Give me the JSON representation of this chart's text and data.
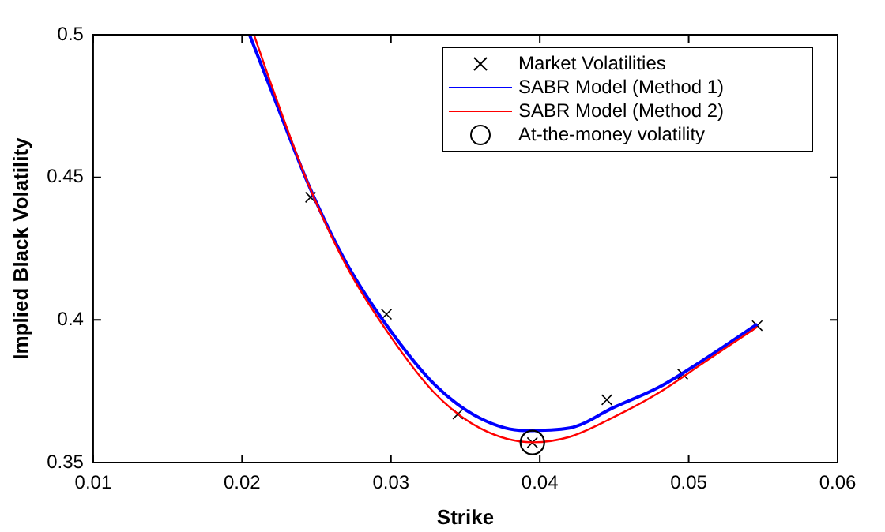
{
  "chart_data": {
    "type": "scatter",
    "xlabel": "Strike",
    "ylabel": "Implied Black Volatility",
    "xlim": [
      0.01,
      0.06
    ],
    "xticks": [
      0.01,
      0.02,
      0.03,
      0.04,
      0.05,
      0.06
    ],
    "ylim": [
      0.35,
      0.5
    ],
    "yticks": [
      0.35,
      0.4,
      0.45,
      0.5
    ],
    "grid": false,
    "legend": "top right",
    "series": [
      {
        "name": "Market Volatilities",
        "type": "scatter",
        "marker": "cross",
        "color": "#000000",
        "x": [
          0.0246,
          0.0297,
          0.0345,
          0.0395,
          0.0445,
          0.0496,
          0.0546
        ],
        "values": [
          0.443,
          0.402,
          0.367,
          0.357,
          0.372,
          0.381,
          0.398
        ]
      },
      {
        "name": "SABR Model (Method 1)",
        "type": "line",
        "marker": "none",
        "color": "#0000ff",
        "x": [
          0.0205,
          0.022,
          0.0245,
          0.027,
          0.03,
          0.033,
          0.036,
          0.039,
          0.042,
          0.045,
          0.048,
          0.051,
          0.0546
        ],
        "values": [
          0.5,
          0.48,
          0.447,
          0.42,
          0.396,
          0.377,
          0.3655,
          0.3612,
          0.3621,
          0.3694,
          0.3764,
          0.386,
          0.3985
        ]
      },
      {
        "name": "SABR Model (Method 2)",
        "type": "line",
        "marker": "none",
        "color": "#ff0000",
        "x": [
          0.0208,
          0.022,
          0.0245,
          0.027,
          0.03,
          0.033,
          0.036,
          0.0395,
          0.042,
          0.045,
          0.048,
          0.051,
          0.0546
        ],
        "values": [
          0.5,
          0.482,
          0.447,
          0.419,
          0.394,
          0.374,
          0.362,
          0.3571,
          0.359,
          0.366,
          0.3745,
          0.385,
          0.3975
        ]
      },
      {
        "name": "At-the-money volatility",
        "type": "scatter",
        "marker": "circle",
        "color": "#000000",
        "x": [
          0.0395
        ],
        "values": [
          0.357
        ]
      }
    ]
  }
}
